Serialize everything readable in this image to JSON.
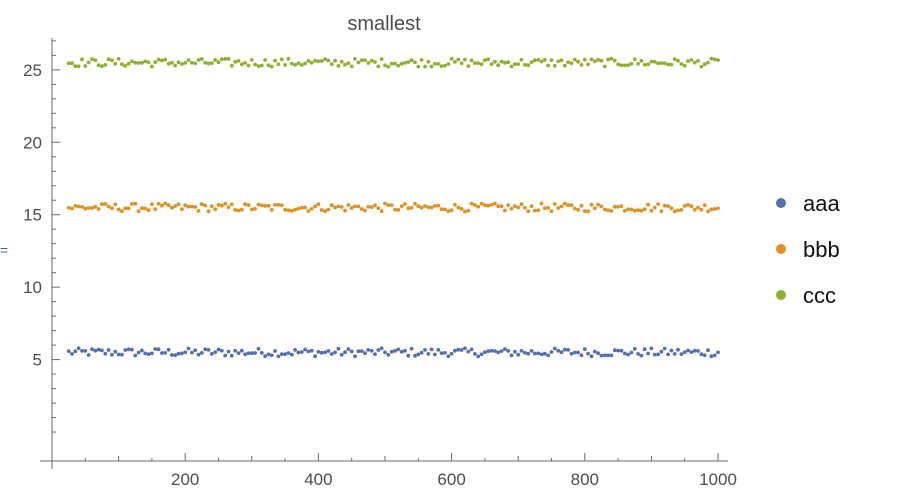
{
  "chart_data": {
    "type": "scatter",
    "title": "smallest",
    "xlabel": "",
    "ylabel": "",
    "xlim": [
      0,
      1000
    ],
    "ylim": [
      -2,
      27.2
    ],
    "x_range": [
      25,
      1000
    ],
    "x_step": 5,
    "point_spread": 0.28,
    "x_ticks": [
      200,
      400,
      600,
      800,
      1000
    ],
    "y_ticks": [
      5,
      10,
      15,
      20,
      25
    ],
    "grid": false,
    "legend_position": "right",
    "series": [
      {
        "name": "aaa",
        "color": "#5470b3",
        "center": 5.5
      },
      {
        "name": "bbb",
        "color": "#e0901e",
        "center": 15.5
      },
      {
        "name": "ccc",
        "color": "#8fb02c",
        "center": 25.5
      }
    ]
  },
  "side_mark": "="
}
